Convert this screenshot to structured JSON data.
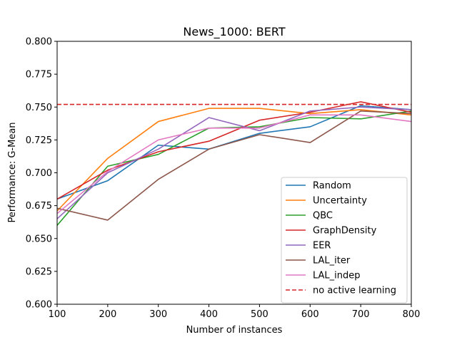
{
  "chart_data": {
    "type": "line",
    "title": "News_1000: BERT",
    "xlabel": "Number of instances",
    "ylabel": "Performance: G-Mean",
    "xlim": [
      100,
      800
    ],
    "ylim": [
      0.6,
      0.8
    ],
    "xticks": [
      "100",
      "200",
      "300",
      "400",
      "500",
      "600",
      "700",
      "800"
    ],
    "yticks": [
      "0.600",
      "0.625",
      "0.650",
      "0.675",
      "0.700",
      "0.725",
      "0.750",
      "0.775",
      "0.800"
    ],
    "grid": false,
    "legend_position": "lower-right",
    "x": [
      100,
      200,
      300,
      400,
      500,
      600,
      700,
      800
    ],
    "series": [
      {
        "name": "Random",
        "color": "#1f77b4",
        "style": "solid",
        "values": [
          0.68,
          0.694,
          0.721,
          0.718,
          0.73,
          0.735,
          0.751,
          0.748
        ]
      },
      {
        "name": "Uncertainty",
        "color": "#ff7f0e",
        "style": "solid",
        "values": [
          0.671,
          0.711,
          0.739,
          0.749,
          0.749,
          0.745,
          0.748,
          0.744
        ]
      },
      {
        "name": "QBC",
        "color": "#2ca02c",
        "style": "solid",
        "values": [
          0.66,
          0.705,
          0.714,
          0.734,
          0.735,
          0.742,
          0.741,
          0.747
        ]
      },
      {
        "name": "GraphDensity",
        "color": "#d62728",
        "style": "solid",
        "values": [
          0.68,
          0.702,
          0.716,
          0.724,
          0.74,
          0.746,
          0.754,
          0.746
        ]
      },
      {
        "name": "EER",
        "color": "#9467bd",
        "style": "solid",
        "values": [
          0.665,
          0.7,
          0.718,
          0.742,
          0.732,
          0.747,
          0.75,
          0.748
        ]
      },
      {
        "name": "LAL_iter",
        "color": "#8c564b",
        "style": "solid",
        "values": [
          0.673,
          0.664,
          0.695,
          0.718,
          0.729,
          0.723,
          0.747,
          0.745
        ]
      },
      {
        "name": "LAL_indep",
        "color": "#e377c2",
        "style": "solid",
        "values": [
          0.669,
          0.701,
          0.725,
          0.734,
          0.734,
          0.744,
          0.744,
          0.739
        ]
      },
      {
        "name": "no active learning",
        "color": "#d62728",
        "style": "dashed",
        "values": [
          0.752,
          0.752,
          0.752,
          0.752,
          0.752,
          0.752,
          0.752,
          0.752
        ]
      }
    ]
  }
}
